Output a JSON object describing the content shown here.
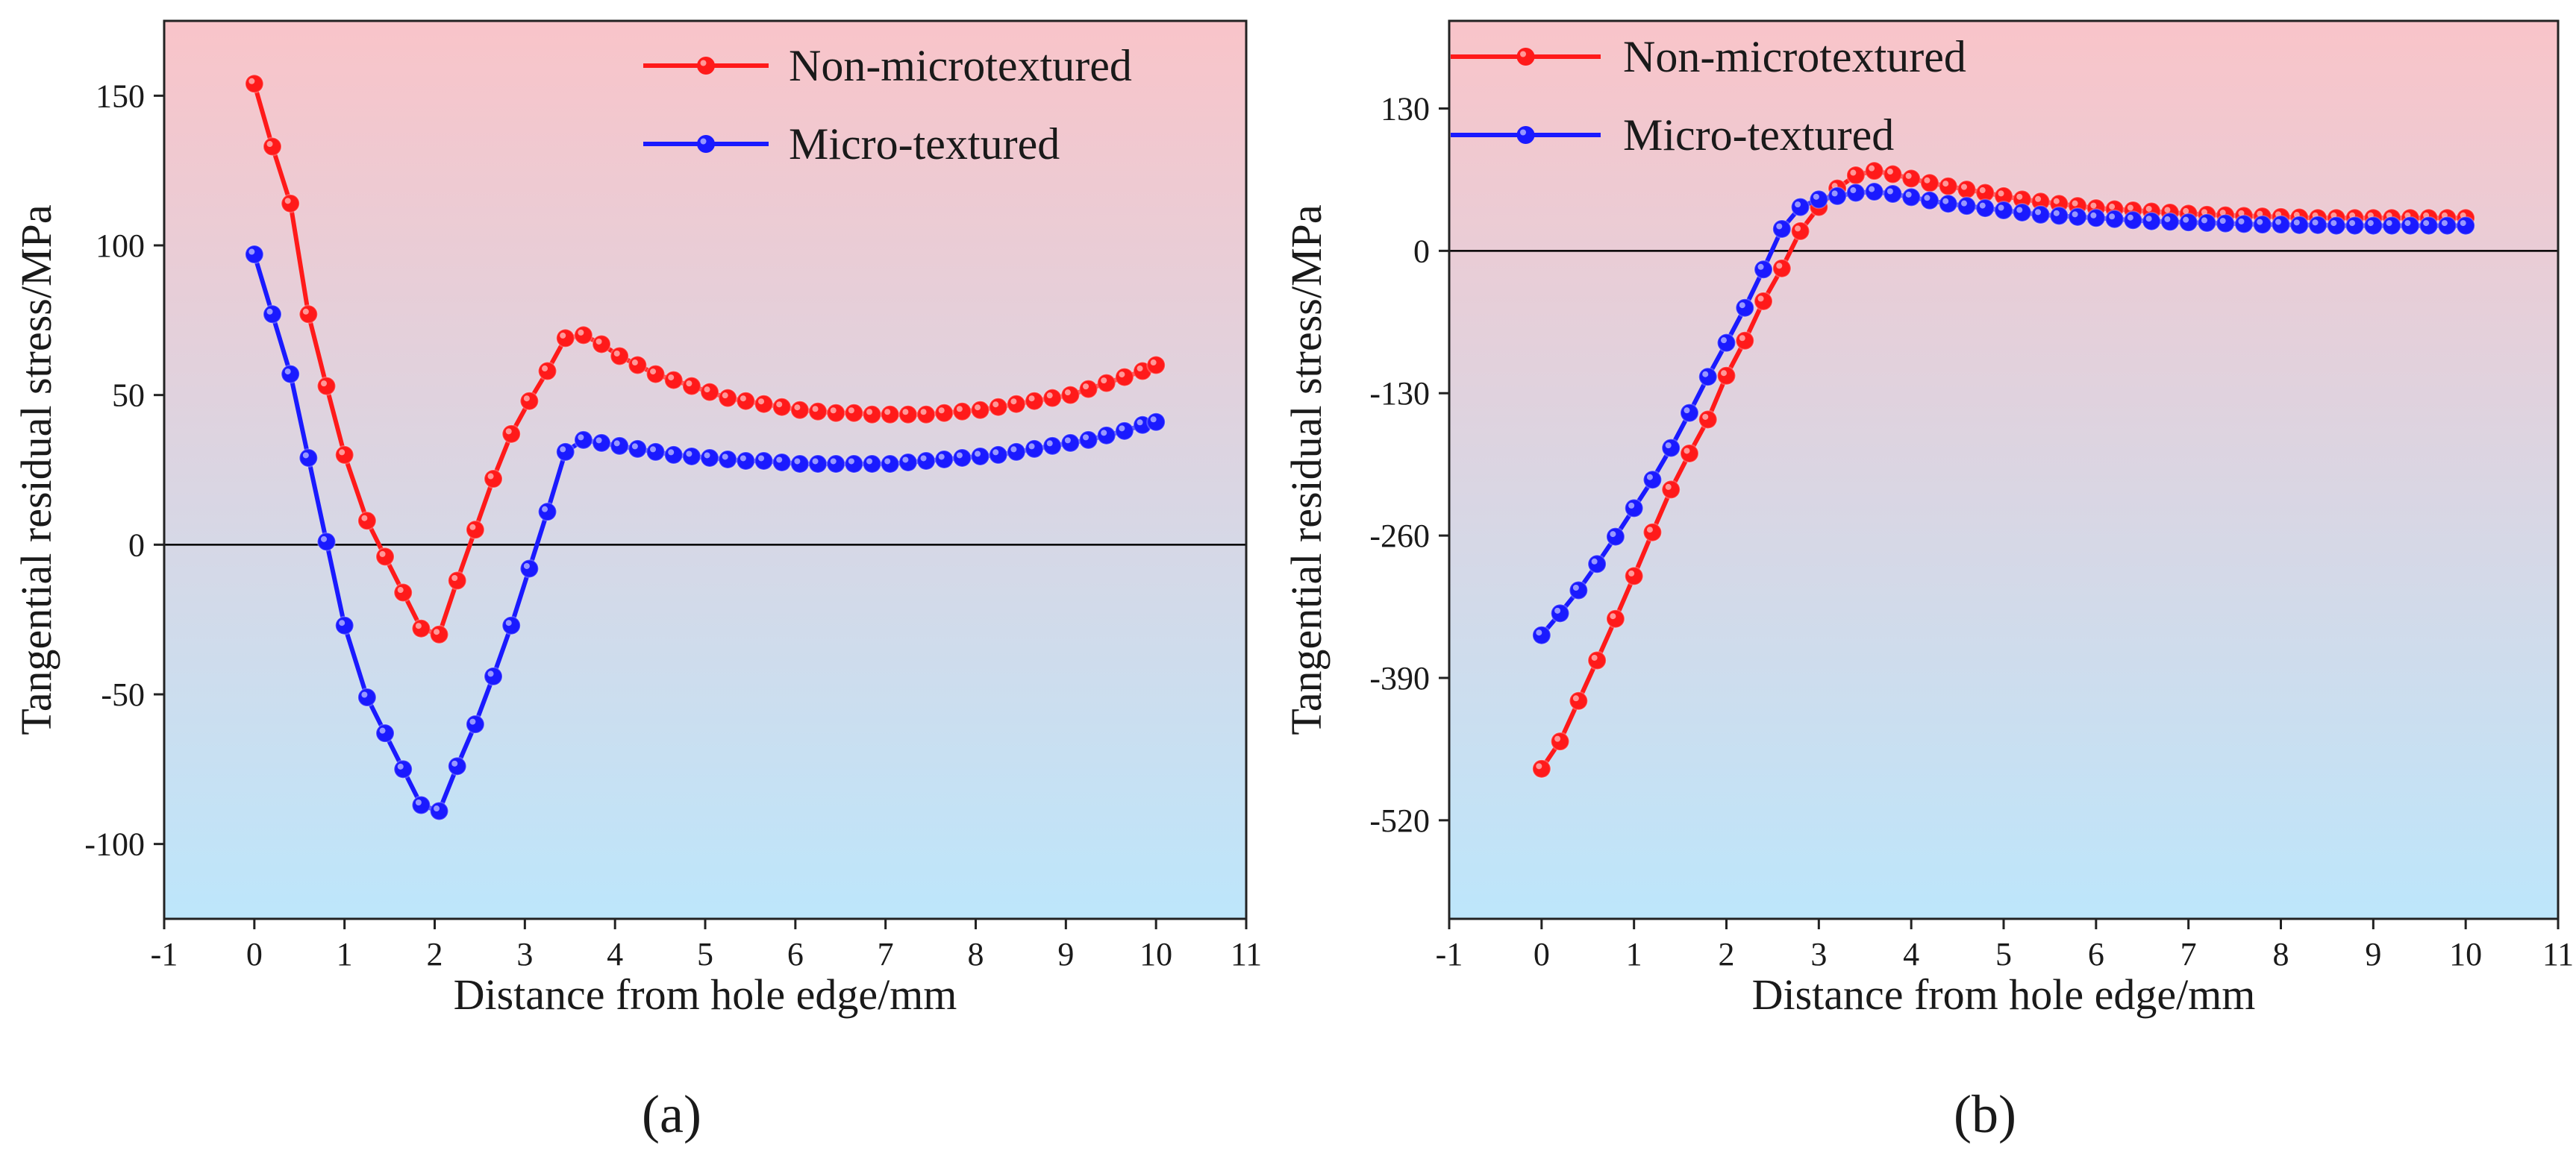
{
  "figure": {
    "panel_labels": [
      "(a)",
      "(b)"
    ],
    "background_colors": {
      "top": "#f9c4c9",
      "bottom": "#bde6fb"
    },
    "series_colors": {
      "Non-microtextured": "#ff1a1a",
      "Micro-textured": "#1a1aff"
    }
  },
  "chart_data": [
    {
      "type": "line",
      "panel": "(a)",
      "title": "",
      "xlabel": "Distance from hole edge/mm",
      "ylabel": "Tangential residual stress/MPa",
      "xlim": [
        -1,
        11
      ],
      "ylim": [
        -125,
        175
      ],
      "xticks": [
        -1,
        0,
        1,
        2,
        3,
        4,
        5,
        6,
        7,
        8,
        9,
        10,
        11
      ],
      "xtick_labels": [
        "-1",
        "0",
        "1",
        "2",
        "3",
        "4",
        "5",
        "6",
        "7",
        "8",
        "9",
        "10",
        "11"
      ],
      "yticks": [
        -100,
        -50,
        0,
        50,
        100,
        150
      ],
      "ytick_labels": [
        "-100",
        "-50",
        "0",
        "50",
        "100",
        "150"
      ],
      "legend_position": "top-right",
      "series": [
        {
          "name": "Non-microtextured",
          "color": "#ff1a1a",
          "x": [
            0,
            0.2,
            0.4,
            0.6,
            0.8,
            1.0,
            1.25,
            1.45,
            1.65,
            1.85,
            2.05,
            2.25,
            2.45,
            2.65,
            2.85,
            3.05,
            3.25,
            3.45,
            3.65,
            3.85,
            4.05,
            4.25,
            4.45,
            4.65,
            4.85,
            5.05,
            5.25,
            5.45,
            5.65,
            5.85,
            6.05,
            6.25,
            6.45,
            6.65,
            6.85,
            7.05,
            7.25,
            7.45,
            7.65,
            7.85,
            8.05,
            8.25,
            8.45,
            8.65,
            8.85,
            9.05,
            9.25,
            9.45,
            9.65,
            9.85,
            10.0
          ],
          "y": [
            154,
            133,
            114,
            77,
            53,
            30,
            8,
            -4,
            -16,
            -28,
            -30,
            -12,
            5,
            22,
            37,
            48,
            58,
            69,
            70,
            67,
            63,
            60,
            57,
            55,
            53,
            51,
            49,
            48,
            47,
            46,
            45,
            44.5,
            44,
            44,
            43.5,
            43.5,
            43.5,
            43.5,
            44,
            44.5,
            45,
            46,
            47,
            48,
            49,
            50,
            52,
            54,
            56,
            58,
            60
          ]
        },
        {
          "name": "Micro-textured",
          "color": "#1a1aff",
          "x": [
            0,
            0.2,
            0.4,
            0.6,
            0.8,
            1.0,
            1.25,
            1.45,
            1.65,
            1.85,
            2.05,
            2.25,
            2.45,
            2.65,
            2.85,
            3.05,
            3.25,
            3.45,
            3.65,
            3.85,
            4.05,
            4.25,
            4.45,
            4.65,
            4.85,
            5.05,
            5.25,
            5.45,
            5.65,
            5.85,
            6.05,
            6.25,
            6.45,
            6.65,
            6.85,
            7.05,
            7.25,
            7.45,
            7.65,
            7.85,
            8.05,
            8.25,
            8.45,
            8.65,
            8.85,
            9.05,
            9.25,
            9.45,
            9.65,
            9.85,
            10.0
          ],
          "y": [
            97,
            77,
            57,
            29,
            1,
            -27,
            -51,
            -63,
            -75,
            -87,
            -89,
            -74,
            -60,
            -44,
            -27,
            -8,
            11,
            31,
            35,
            34,
            33,
            32,
            31,
            30,
            29.5,
            29,
            28.5,
            28,
            28,
            27.5,
            27,
            27,
            27,
            27,
            27,
            27,
            27.5,
            28,
            28.5,
            29,
            29.5,
            30,
            31,
            32,
            33,
            34,
            35,
            36.5,
            38,
            40,
            41
          ]
        }
      ]
    },
    {
      "type": "line",
      "panel": "(b)",
      "title": "",
      "xlabel": "Distance from hole edge/mm",
      "ylabel": "Tangential residual stress/MPa",
      "xlim": [
        -1,
        11
      ],
      "ylim": [
        -610,
        210
      ],
      "xticks": [
        -1,
        0,
        1,
        2,
        3,
        4,
        5,
        6,
        7,
        8,
        9,
        10,
        11
      ],
      "xtick_labels": [
        "-1",
        "0",
        "1",
        "2",
        "3",
        "4",
        "5",
        "6",
        "7",
        "8",
        "9",
        "10",
        "11"
      ],
      "yticks": [
        -520,
        -390,
        -260,
        -130,
        0,
        130
      ],
      "ytick_labels": [
        "-520",
        "-390",
        "-260",
        "-130",
        "0",
        "130"
      ],
      "legend_position": "top-left",
      "series": [
        {
          "name": "Non-microtextured",
          "color": "#ff1a1a",
          "x": [
            0,
            0.2,
            0.4,
            0.6,
            0.8,
            1.0,
            1.2,
            1.4,
            1.6,
            1.8,
            2.0,
            2.2,
            2.4,
            2.6,
            2.8,
            3.0,
            3.2,
            3.4,
            3.6,
            3.8,
            4.0,
            4.2,
            4.4,
            4.6,
            4.8,
            5.0,
            5.2,
            5.4,
            5.6,
            5.8,
            6.0,
            6.2,
            6.4,
            6.6,
            6.8,
            7.0,
            7.2,
            7.4,
            7.6,
            7.8,
            8.0,
            8.2,
            8.4,
            8.6,
            8.8,
            9.0,
            9.2,
            9.4,
            9.6,
            9.8,
            10.0
          ],
          "y": [
            -473,
            -448,
            -411,
            -374,
            -336,
            -297,
            -257,
            -218,
            -185,
            -154,
            -114,
            -82,
            -46,
            -16,
            18,
            40,
            57,
            69,
            73,
            70,
            66,
            62,
            59,
            56,
            53,
            50,
            47,
            45,
            43,
            41,
            39,
            38,
            37,
            36,
            35,
            34,
            33,
            32.5,
            32,
            31.5,
            31,
            30.5,
            30,
            30,
            30,
            30,
            30,
            30,
            30,
            30,
            30
          ]
        },
        {
          "name": "Micro-textured",
          "color": "#1a1aff",
          "x": [
            0,
            0.2,
            0.4,
            0.6,
            0.8,
            1.0,
            1.2,
            1.4,
            1.6,
            1.8,
            2.0,
            2.2,
            2.4,
            2.6,
            2.8,
            3.0,
            3.2,
            3.4,
            3.6,
            3.8,
            4.0,
            4.2,
            4.4,
            4.6,
            4.8,
            5.0,
            5.2,
            5.4,
            5.6,
            5.8,
            6.0,
            6.2,
            6.4,
            6.6,
            6.8,
            7.0,
            7.2,
            7.4,
            7.6,
            7.8,
            8.0,
            8.2,
            8.4,
            8.6,
            8.8,
            9.0,
            9.2,
            9.4,
            9.6,
            9.8,
            10.0
          ],
          "y": [
            -351,
            -331,
            -310,
            -286,
            -261,
            -235,
            -209,
            -180,
            -148,
            -115,
            -84,
            -52,
            -17,
            20,
            40,
            47,
            50,
            53,
            54,
            52,
            49,
            46,
            43,
            41,
            39,
            37,
            35,
            33,
            32,
            31,
            30,
            29,
            28,
            27,
            26.5,
            26,
            25.5,
            25,
            24.5,
            24,
            24,
            23.5,
            23.5,
            23,
            23,
            23,
            23,
            23,
            23,
            23,
            23
          ]
        }
      ]
    }
  ]
}
